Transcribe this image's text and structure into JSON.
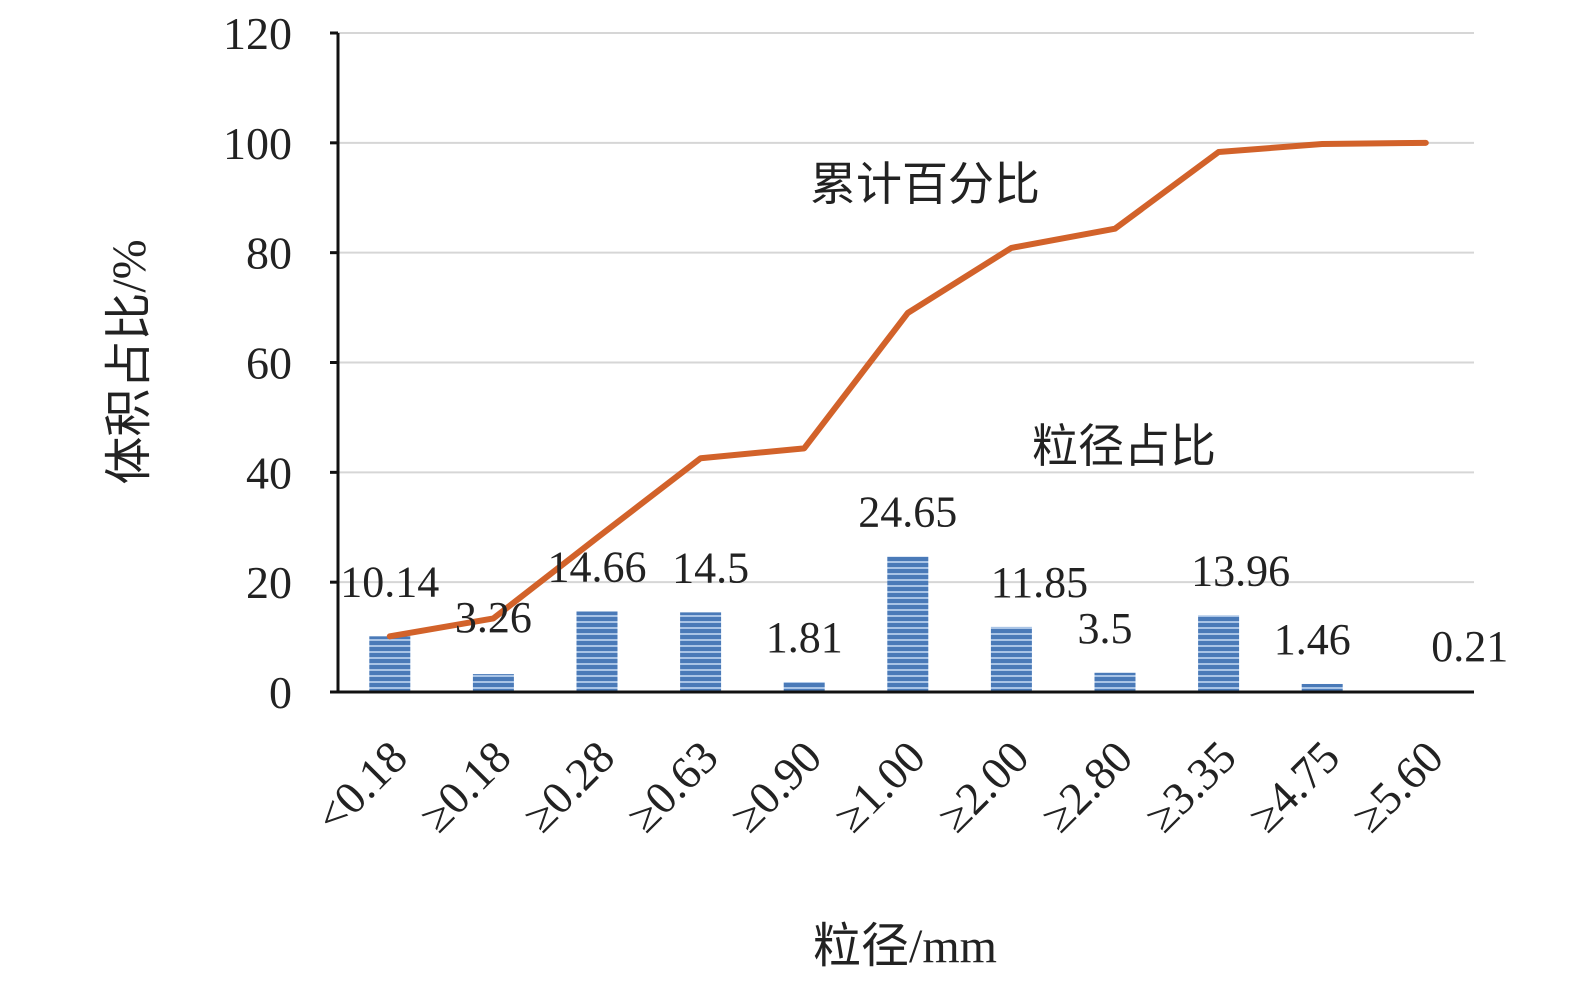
{
  "chart_data": {
    "type": "bar",
    "categories": [
      "<0.18",
      "≥0.18",
      "≥0.28",
      "≥0.63",
      "≥0.90",
      "≥1.00",
      "≥2.00",
      "≥2.80",
      "≥3.35",
      "≥4.75",
      "≥5.60"
    ],
    "series": [
      {
        "name": "粒径占比",
        "type": "bar",
        "values": [
          10.14,
          3.26,
          14.66,
          14.5,
          1.81,
          24.65,
          11.85,
          3.5,
          13.96,
          1.46,
          0.21
        ],
        "labels": [
          "10.14",
          "3.26",
          "14.66",
          "14.5",
          "1.81",
          "24.65",
          "11.85",
          "3.5",
          "13.96",
          "1.46",
          "0.21"
        ],
        "color": "#4a7ab8"
      },
      {
        "name": "累计百分比",
        "type": "line",
        "values": [
          10.14,
          13.4,
          28.06,
          42.56,
          44.37,
          69.02,
          80.87,
          84.37,
          98.33,
          99.79,
          100
        ],
        "color": "#d2622a"
      }
    ],
    "xlabel": "粒径/mm",
    "ylabel": "体积占比/%",
    "ylim": [
      0,
      120
    ],
    "yticks": [
      "0",
      "20",
      "40",
      "60",
      "80",
      "100",
      "120"
    ],
    "grid": true
  }
}
